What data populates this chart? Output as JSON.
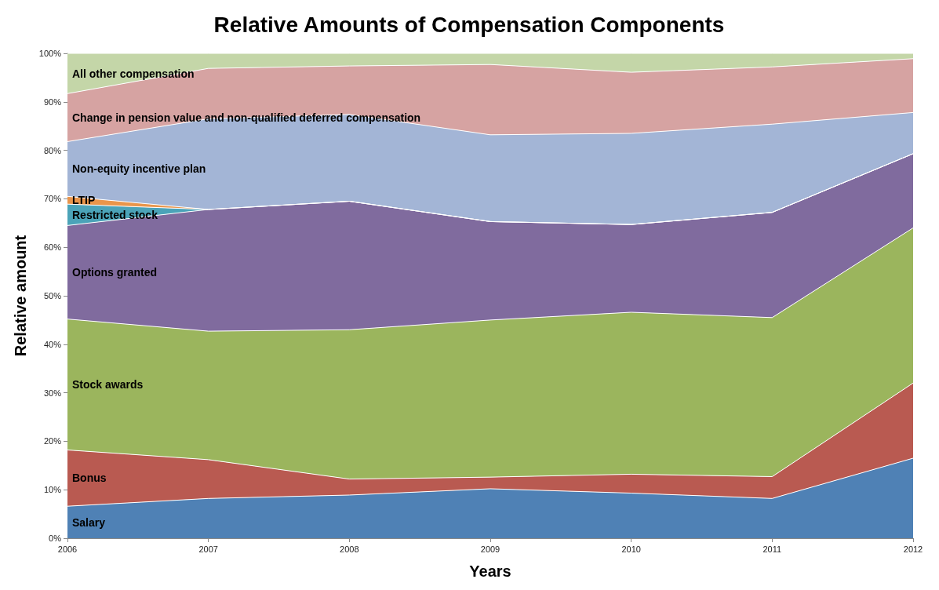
{
  "chart_data": {
    "type": "area",
    "title": "Relative Amounts of Compensation Components",
    "xlabel": "Years",
    "ylabel": "Relative amount",
    "stacked": true,
    "legend": false,
    "grid": false,
    "marker": "none",
    "categories": [
      "2006",
      "2007",
      "2008",
      "2009",
      "2010",
      "2011",
      "2012"
    ],
    "ylim": [
      0,
      100
    ],
    "yticks": [
      {
        "value": 0,
        "label": "0%"
      },
      {
        "value": 10,
        "label": "10%"
      },
      {
        "value": 20,
        "label": "20%"
      },
      {
        "value": 30,
        "label": "30%"
      },
      {
        "value": 40,
        "label": "40%"
      },
      {
        "value": 50,
        "label": "50%"
      },
      {
        "value": 60,
        "label": "60%"
      },
      {
        "value": 70,
        "label": "70%"
      },
      {
        "value": 80,
        "label": "80%"
      },
      {
        "value": 90,
        "label": "90%"
      },
      {
        "value": 100,
        "label": "100%"
      }
    ],
    "series": [
      {
        "name": "Salary",
        "color": "#4f81b5",
        "values": [
          6.6,
          8.2,
          8.9,
          10.2,
          9.3,
          8.2,
          16.5
        ]
      },
      {
        "name": "Bonus",
        "color": "#b95a51",
        "values": [
          11.6,
          8.0,
          3.3,
          2.4,
          3.9,
          4.5,
          15.5
        ]
      },
      {
        "name": "Stock awards",
        "color": "#9bb55d",
        "values": [
          27.0,
          26.5,
          30.8,
          32.4,
          33.4,
          32.8,
          32.0
        ]
      },
      {
        "name": "Options granted",
        "color": "#806b9e",
        "values": [
          19.3,
          25.1,
          26.5,
          20.3,
          18.1,
          21.7,
          15.3
        ]
      },
      {
        "name": "Restricted stock",
        "color": "#4ba3b8",
        "values": [
          4.4,
          0,
          0,
          0,
          0,
          0,
          0
        ]
      },
      {
        "name": "LTIP",
        "color": "#e9954b",
        "values": [
          1.6,
          0,
          0,
          0,
          0,
          0,
          0
        ]
      },
      {
        "name": "Non-equity incentive plan",
        "color": "#a3b5d6",
        "values": [
          11.3,
          18.7,
          17.9,
          17.9,
          18.8,
          18.2,
          8.5
        ]
      },
      {
        "name": "Change in pension value and non-qualified deferred compensation",
        "color": "#d6a3a2",
        "values": [
          9.9,
          10.4,
          10.0,
          14.5,
          12.6,
          11.8,
          11.1
        ]
      },
      {
        "name": "All other compensation",
        "color": "#c4d6a8",
        "values": [
          8.3,
          3.1,
          2.6,
          2.3,
          3.9,
          2.8,
          1.1
        ]
      }
    ]
  }
}
